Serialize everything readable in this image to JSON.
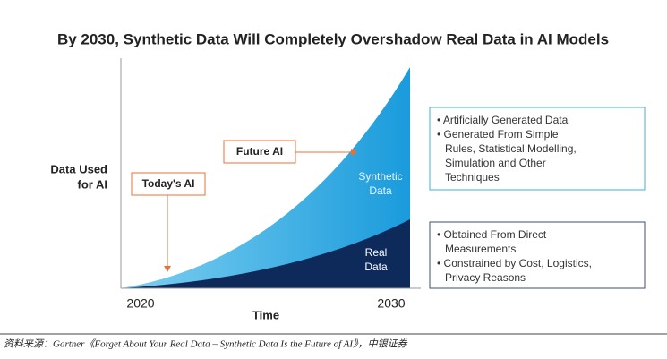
{
  "title": "By 2030, Synthetic Data Will Completely Overshadow Real Data in AI Models",
  "y_label": [
    "Data Used",
    "for AI"
  ],
  "x_label": "Time",
  "x_start": "2020",
  "x_end": "2030",
  "areas": {
    "synthetic": [
      "Synthetic",
      "Data"
    ],
    "real": [
      "Real",
      "Data"
    ]
  },
  "callouts": {
    "today": "Today's AI",
    "future": "Future AI"
  },
  "synthetic_notes": [
    "• Artificially Generated Data",
    "• Generated From Simple",
    "Rules, Statistical Modelling,",
    "Simulation and Other",
    "Techniques"
  ],
  "real_notes": [
    "• Obtained From Direct",
    "Measurements",
    "• Constrained by Cost, Logistics,",
    "Privacy Reasons"
  ],
  "source": "资料来源：Gartner《Forget About Your Real Data – Synthetic Data Is the Future of AI》，中银证券"
}
